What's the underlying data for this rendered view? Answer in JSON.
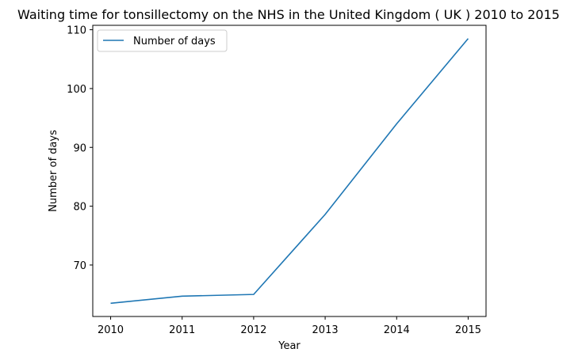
{
  "chart_data": {
    "type": "line",
    "title": "Waiting time for tonsillectomy on the NHS in the United Kingdom ( UK ) 2010 to 2015",
    "xlabel": "Year",
    "ylabel": "Number of days",
    "x": [
      2010,
      2011,
      2012,
      2013,
      2014,
      2015
    ],
    "series": [
      {
        "name": "Number of days",
        "values": [
          63.5,
          64.7,
          65.0,
          78.6,
          94.0,
          108.5
        ],
        "color": "#1f77b4"
      }
    ],
    "xticks": [
      "2010",
      "2011",
      "2012",
      "2013",
      "2014",
      "2015"
    ],
    "yticks": [
      "70",
      "80",
      "90",
      "100",
      "110"
    ],
    "xlim": [
      2009.75,
      2015.25
    ],
    "ylim": [
      61.25,
      110.75
    ],
    "grid": false,
    "legend_position": "top-left"
  }
}
